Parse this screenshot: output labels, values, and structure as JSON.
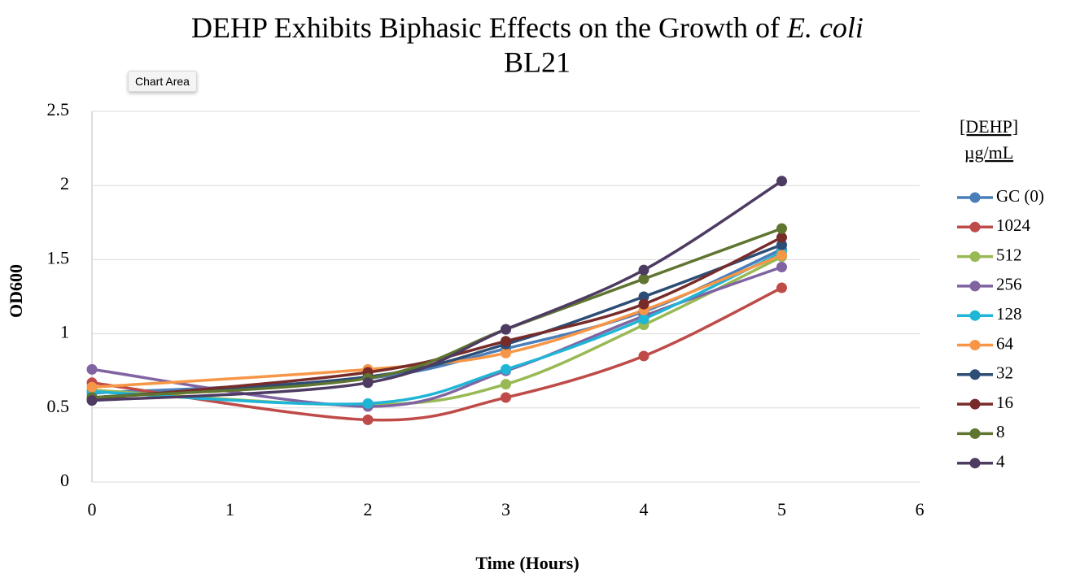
{
  "tooltip": "Chart Area",
  "chart_data": {
    "type": "line",
    "title": {
      "text": "DEHP Exhibits Biphasic Effects on the Growth of",
      "italic": "E. coli",
      "line2": "BL21"
    },
    "x_label": "Time (Hours)",
    "y_label": "OD600",
    "legend_title": [
      "[DEHP]",
      "µg/mL"
    ],
    "legend": "right",
    "grid": true,
    "smooth": true,
    "x": [
      0,
      2,
      3,
      4,
      5
    ],
    "xlim": [
      0,
      6
    ],
    "xticks": [
      0,
      1,
      2,
      3,
      4,
      5,
      6
    ],
    "ylim": [
      0,
      2.5
    ],
    "yticks": [
      0,
      0.5,
      1,
      1.5,
      2,
      2.5
    ],
    "series": [
      {
        "name": "GC (0)",
        "color": "#4a7ebb",
        "values": [
          0.6,
          0.7,
          0.9,
          1.15,
          1.57
        ]
      },
      {
        "name": "1024",
        "color": "#be4b48",
        "values": [
          0.67,
          0.42,
          0.57,
          0.85,
          1.31
        ]
      },
      {
        "name": "512",
        "color": "#98b954",
        "values": [
          0.62,
          0.52,
          0.66,
          1.06,
          1.52
        ]
      },
      {
        "name": "256",
        "color": "#8064a2",
        "values": [
          0.76,
          0.51,
          0.75,
          1.12,
          1.45
        ]
      },
      {
        "name": "128",
        "color": "#1fb5d6",
        "values": [
          0.61,
          0.53,
          0.76,
          1.1,
          1.55
        ]
      },
      {
        "name": "64",
        "color": "#f79646",
        "values": [
          0.64,
          0.76,
          0.87,
          1.16,
          1.53
        ]
      },
      {
        "name": "32",
        "color": "#2c4d75",
        "values": [
          0.57,
          0.71,
          0.93,
          1.25,
          1.6
        ]
      },
      {
        "name": "16",
        "color": "#772c2a",
        "values": [
          0.56,
          0.74,
          0.95,
          1.2,
          1.65
        ]
      },
      {
        "name": "8",
        "color": "#5f7530",
        "values": [
          0.57,
          0.7,
          1.03,
          1.37,
          1.71
        ]
      },
      {
        "name": "4",
        "color": "#4d3b62",
        "values": [
          0.55,
          0.67,
          1.03,
          1.43,
          2.03
        ]
      }
    ]
  }
}
